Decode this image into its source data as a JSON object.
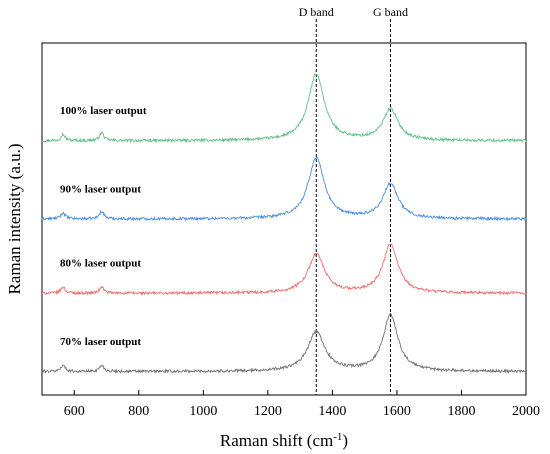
{
  "chart_data": {
    "type": "line",
    "title": "",
    "xlabel": "Raman shift (cm",
    "xlabel_sup": "-1",
    "xlabel_close": ")",
    "ylabel": "Raman intensity (a.u.)",
    "xlim": [
      500,
      2000
    ],
    "x_ticks": [
      600,
      800,
      1000,
      1200,
      1400,
      1600,
      1800,
      2000
    ],
    "y_ticks_shown": false,
    "grid": false,
    "legend": "none",
    "y_units": "arbitrary (stacked, offset)",
    "vlines": [
      {
        "x": 1350,
        "label": "D band",
        "style": "dashed"
      },
      {
        "x": 1580,
        "label": "G band",
        "style": "dashed"
      }
    ],
    "series": [
      {
        "name": "100% laser output",
        "color": "#5fbf86",
        "baseline": 3.25,
        "peaks": [
          {
            "x": 565,
            "h": 0.08,
            "w": 8
          },
          {
            "x": 685,
            "h": 0.1,
            "w": 8
          },
          {
            "x": 1350,
            "h": 0.85,
            "w": 30
          },
          {
            "x": 1580,
            "h": 0.4,
            "w": 28
          }
        ]
      },
      {
        "name": "90% laser output",
        "color": "#4a8ee0",
        "baseline": 2.25,
        "peaks": [
          {
            "x": 565,
            "h": 0.08,
            "w": 8
          },
          {
            "x": 685,
            "h": 0.1,
            "w": 8
          },
          {
            "x": 1350,
            "h": 0.78,
            "w": 30
          },
          {
            "x": 1580,
            "h": 0.45,
            "w": 28
          }
        ]
      },
      {
        "name": "80% laser output",
        "color": "#e8706f",
        "baseline": 1.3,
        "peaks": [
          {
            "x": 565,
            "h": 0.08,
            "w": 8
          },
          {
            "x": 685,
            "h": 0.08,
            "w": 8
          },
          {
            "x": 1350,
            "h": 0.5,
            "w": 30
          },
          {
            "x": 1580,
            "h": 0.62,
            "w": 28
          }
        ]
      },
      {
        "name": "70% laser output",
        "color": "#707070",
        "baseline": 0.3,
        "peaks": [
          {
            "x": 565,
            "h": 0.08,
            "w": 8
          },
          {
            "x": 685,
            "h": 0.08,
            "w": 8
          },
          {
            "x": 1350,
            "h": 0.5,
            "w": 32
          },
          {
            "x": 1580,
            "h": 0.72,
            "w": 28
          }
        ]
      }
    ]
  }
}
